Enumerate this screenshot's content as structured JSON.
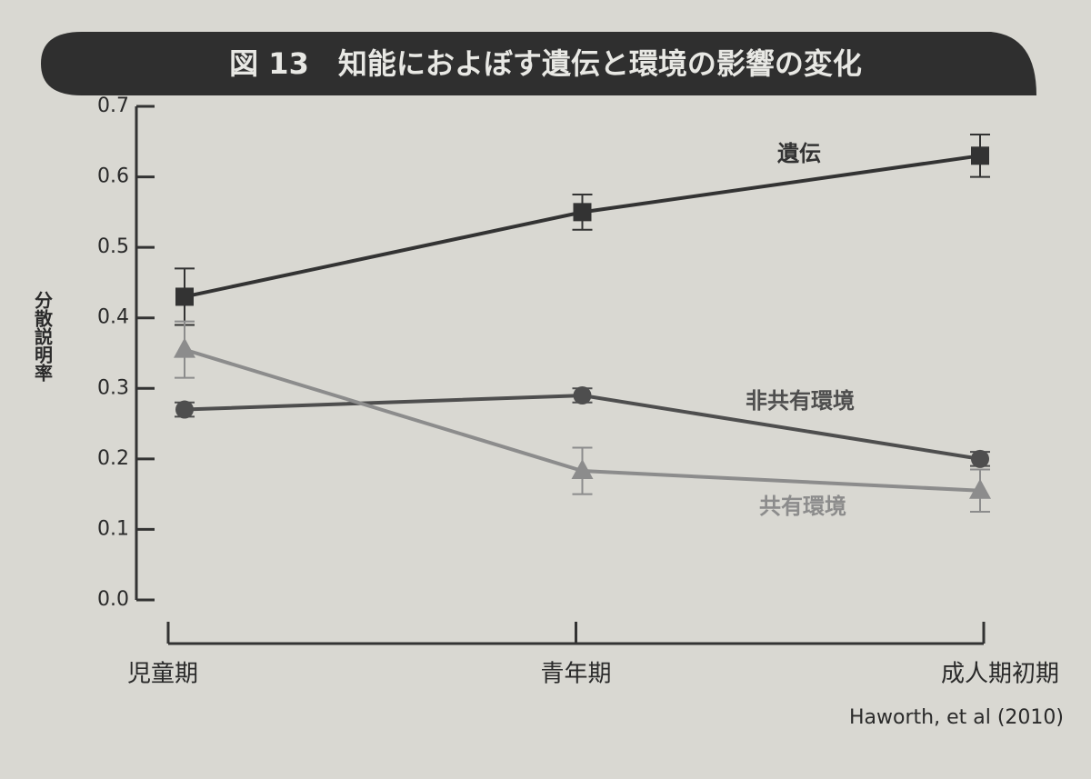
{
  "chart_data": {
    "type": "line",
    "title": "図 13　知能におよぼす遺伝と環境の影響の変化",
    "y_label": "分散説明率",
    "source": "Haworth, et al (2010)",
    "categories": [
      "児童期",
      "青年期",
      "成人期初期"
    ],
    "ylim": [
      0,
      0.7
    ],
    "yticks": [
      {
        "value": 0,
        "label": "0.0"
      },
      0.1,
      0.2,
      0.3,
      0.4,
      0.5,
      0.6,
      0.7
    ],
    "series": [
      {
        "name": "遺伝",
        "color": "#333333",
        "marker": "square",
        "values": [
          0.43,
          0.55,
          0.63
        ],
        "errors": [
          0.04,
          0.025,
          0.03
        ]
      },
      {
        "name": "非共有環境",
        "color": "#4e4e4e",
        "marker": "circle",
        "values": [
          0.27,
          0.29,
          0.2
        ],
        "errors": [
          0.01,
          0.01,
          0.01
        ]
      },
      {
        "name": "共有環境",
        "color": "#8c8c8c",
        "marker": "triangle",
        "values": [
          0.355,
          0.183,
          0.155
        ],
        "errors": [
          0.04,
          0.033,
          0.03
        ]
      }
    ]
  }
}
